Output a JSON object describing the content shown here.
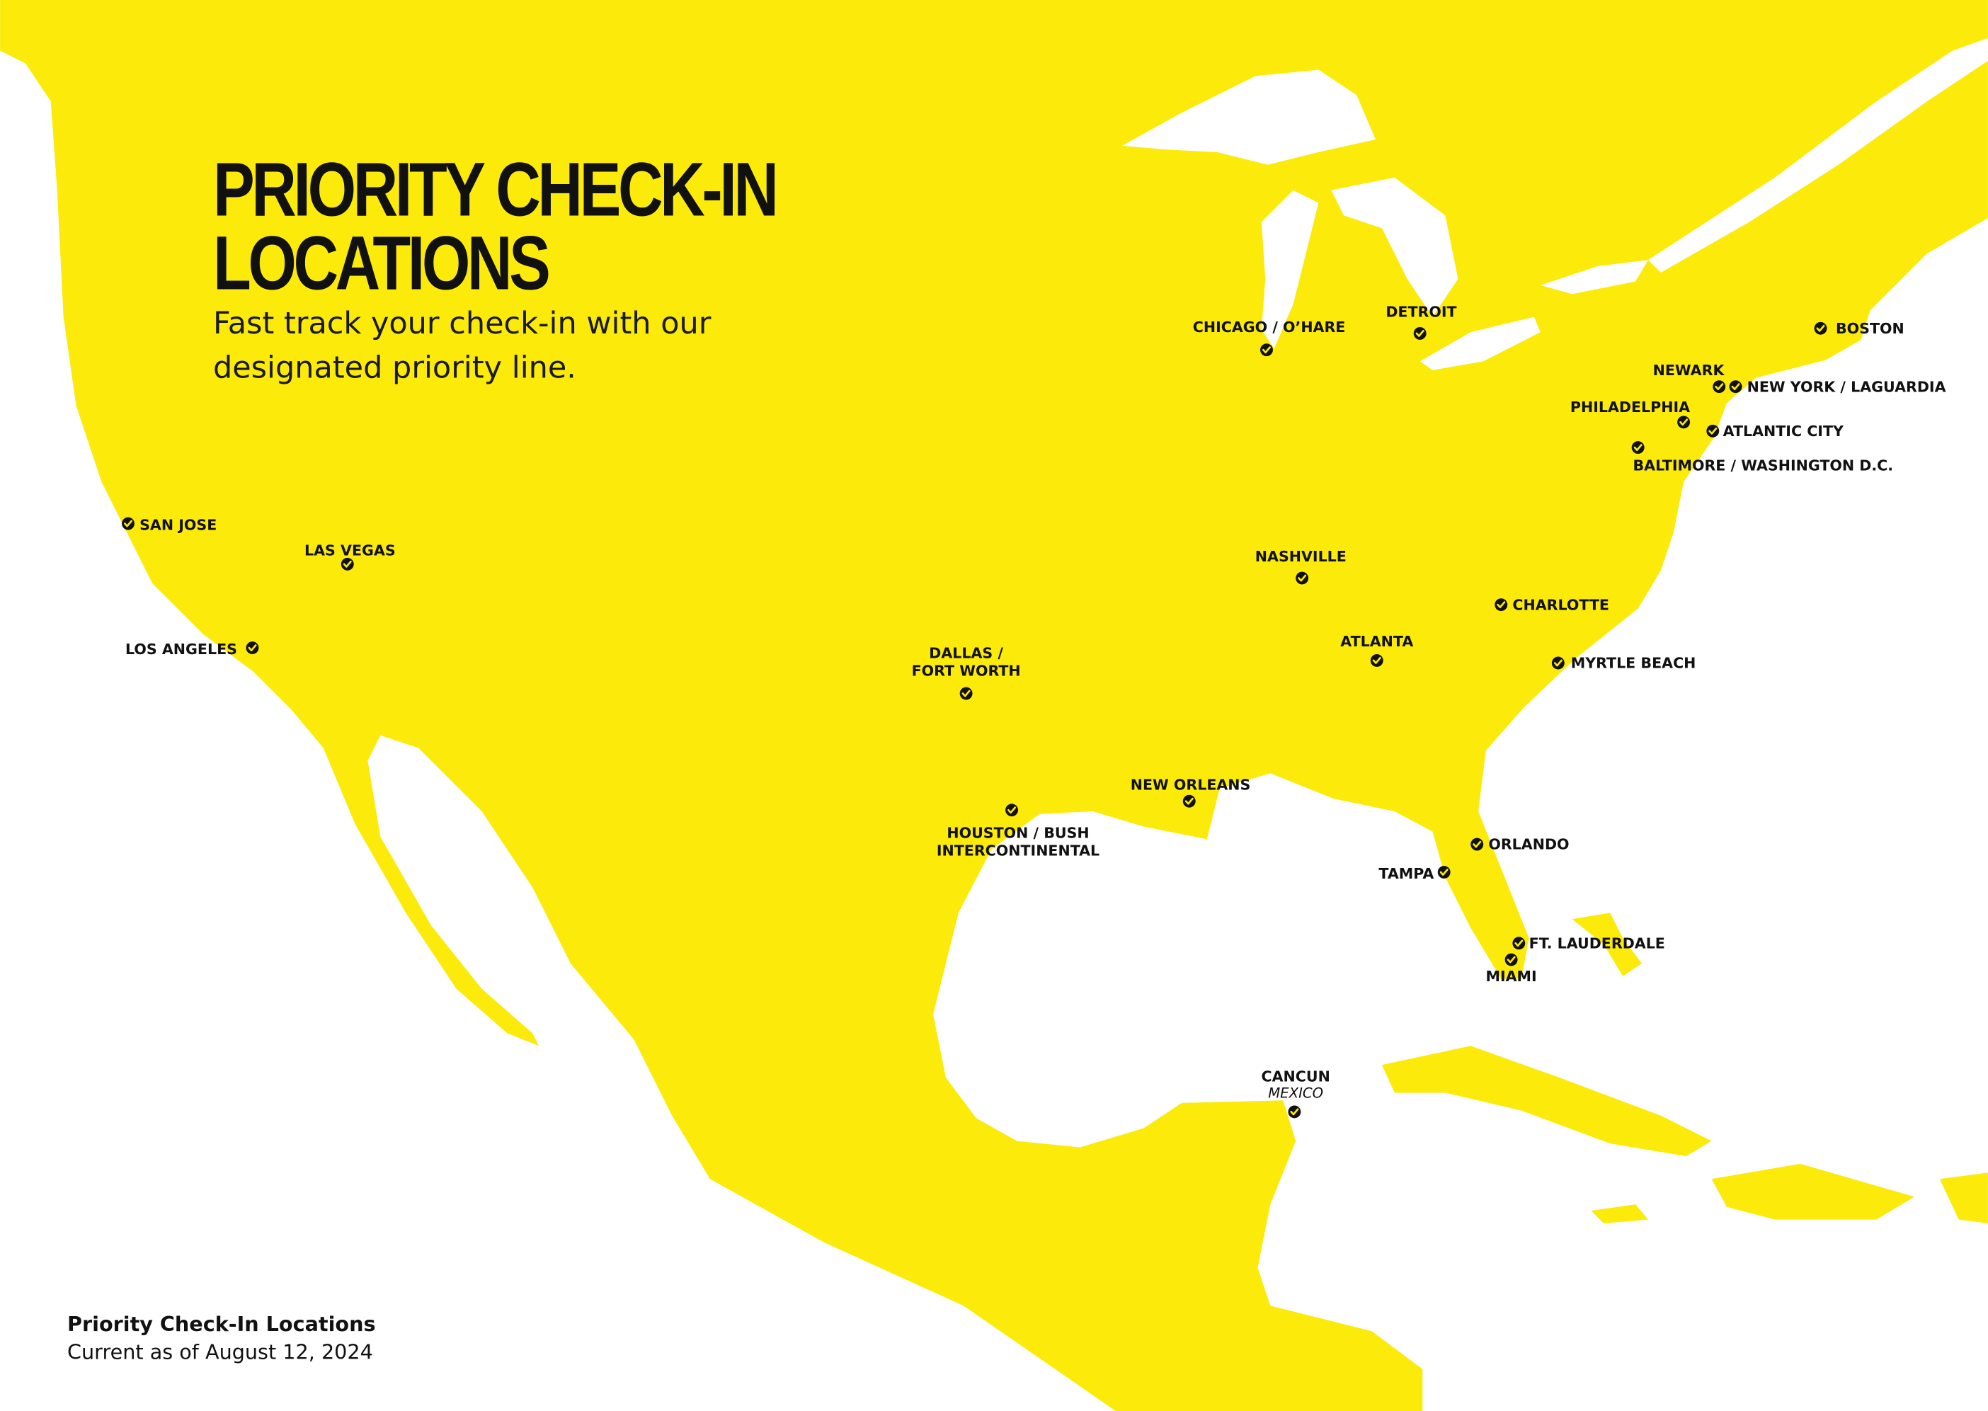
{
  "header": {
    "title_lines": [
      "PRIORITY CHECK-IN",
      "LOCATIONS"
    ],
    "subtitle_lines": [
      "Fast track your check-in with our",
      "designated priority line."
    ]
  },
  "locations": [
    {
      "lines": [
        "SAN JOSE"
      ]
    },
    {
      "lines": [
        "LAS VEGAS"
      ]
    },
    {
      "lines": [
        "LOS ANGELES"
      ]
    },
    {
      "lines": [
        "DALLAS /",
        "FORT WORTH"
      ]
    },
    {
      "lines": [
        "HOUSTON / BUSH",
        "INTERCONTINENTAL"
      ]
    },
    {
      "lines": [
        "NEW ORLEANS"
      ]
    },
    {
      "lines": [
        "CHICAGO / O’HARE"
      ]
    },
    {
      "lines": [
        "DETROIT"
      ]
    },
    {
      "lines": [
        "NASHVILLE"
      ]
    },
    {
      "lines": [
        "ATLANTA"
      ]
    },
    {
      "lines": [
        "CHARLOTTE"
      ]
    },
    {
      "lines": [
        "MYRTLE BEACH"
      ]
    },
    {
      "lines": [
        "ORLANDO"
      ]
    },
    {
      "lines": [
        "TAMPA"
      ]
    },
    {
      "lines": [
        "FT. LAUDERDALE"
      ]
    },
    {
      "lines": [
        "MIAMI"
      ]
    },
    {
      "lines": [
        "BOSTON"
      ]
    },
    {
      "lines": [
        "NEWARK"
      ]
    },
    {
      "lines": [
        "NEW YORK / LAGUARDIA"
      ]
    },
    {
      "lines": [
        "PHILADELPHIA"
      ]
    },
    {
      "lines": [
        "ATLANTIC CITY"
      ]
    },
    {
      "lines": [
        "BALTIMORE / WASHINGTON D.C."
      ]
    },
    {
      "lines": [
        "CANCUN"
      ],
      "country": "MEXICO"
    }
  ],
  "footer": {
    "title": "Priority Check-In Locations",
    "date_line": "Current as of August 12, 2024"
  }
}
